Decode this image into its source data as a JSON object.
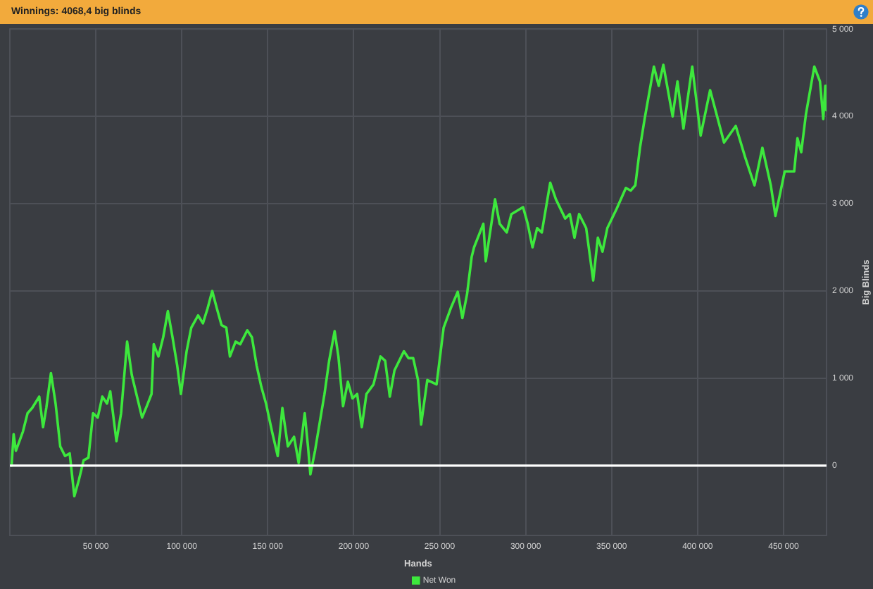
{
  "chart_data": {
    "type": "line",
    "title": "Winnings: 4068,4 big blinds",
    "xlabel": "Hands",
    "ylabel": "Big Blinds",
    "x": [
      1000,
      2200,
      3500,
      7600,
      10300,
      13000,
      17100,
      19300,
      21200,
      23900,
      26600,
      29300,
      32100,
      34800,
      37500,
      40200,
      42900,
      45700,
      48400,
      51100,
      53800,
      56500,
      58400,
      62000,
      64700,
      68200,
      70900,
      74200,
      76900,
      79600,
      82400,
      83700,
      86400,
      89200,
      91900,
      94600,
      97300,
      99500,
      102800,
      105500,
      109500,
      112300,
      115000,
      117700,
      120400,
      123100,
      125900,
      128000,
      131300,
      134000,
      138100,
      140800,
      143500,
      146300,
      149000,
      152500,
      155800,
      158500,
      161700,
      165300,
      168000,
      171500,
      173400,
      174800,
      177500,
      183000,
      185700,
      188900,
      191100,
      193800,
      196600,
      199300,
      202000,
      204700,
      207400,
      211500,
      215600,
      218300,
      221000,
      223700,
      229200,
      231900,
      234600,
      237400,
      239200,
      242800,
      248200,
      252300,
      256400,
      260500,
      263200,
      265900,
      268600,
      270000,
      275400,
      276800,
      282200,
      284900,
      289000,
      291700,
      298500,
      301200,
      304000,
      306700,
      309400,
      314300,
      317600,
      323000,
      325700,
      328400,
      331100,
      335200,
      339300,
      342000,
      344700,
      347500,
      352900,
      358300,
      361100,
      363800,
      366500,
      369200,
      374600,
      377400,
      380100,
      385500,
      388300,
      391800,
      396900,
      401800,
      407300,
      415400,
      422200,
      427700,
      433100,
      437700,
      442600,
      445300,
      450700,
      456200,
      458100,
      460300,
      463000,
      467900,
      471200,
      473100,
      474300,
      474900
    ],
    "series": [
      {
        "name": "Net Won",
        "color": "#3de83d",
        "values": [
          0,
          360,
          170,
          390,
          600,
          660,
          790,
          440,
          660,
          1060,
          710,
          220,
          110,
          140,
          -350,
          -160,
          60,
          90,
          600,
          550,
          790,
          710,
          850,
          280,
          600,
          1420,
          1040,
          770,
          550,
          680,
          820,
          1390,
          1250,
          1470,
          1770,
          1470,
          1150,
          820,
          1310,
          1580,
          1720,
          1630,
          1800,
          2000,
          1800,
          1610,
          1580,
          1250,
          1420,
          1390,
          1550,
          1470,
          1150,
          900,
          710,
          390,
          110,
          660,
          220,
          330,
          30,
          600,
          220,
          -100,
          170,
          820,
          1200,
          1540,
          1250,
          680,
          960,
          770,
          820,
          440,
          820,
          930,
          1250,
          1200,
          790,
          1090,
          1310,
          1230,
          1230,
          980,
          470,
          980,
          930,
          1580,
          1800,
          1990,
          1690,
          1960,
          2390,
          2500,
          2770,
          2340,
          3050,
          2770,
          2670,
          2880,
          2960,
          2770,
          2500,
          2720,
          2670,
          3240,
          3050,
          2830,
          2880,
          2610,
          2880,
          2720,
          2120,
          2610,
          2450,
          2720,
          2940,
          3180,
          3150,
          3210,
          3640,
          3970,
          4570,
          4350,
          4590,
          4000,
          4400,
          3860,
          4570,
          3780,
          4300,
          3700,
          3890,
          3530,
          3210,
          3640,
          3210,
          2860,
          3370,
          3370,
          3750,
          3590,
          4020,
          4570,
          4400,
          3970,
          4350,
          4070
        ]
      }
    ],
    "xlim": [
      0,
      475000
    ],
    "xticks": [
      {
        "value": 50000,
        "label": "50 000"
      },
      {
        "value": 100000,
        "label": "100 000"
      },
      {
        "value": 150000,
        "label": "150 000"
      },
      {
        "value": 200000,
        "label": "200 000"
      },
      {
        "value": 250000,
        "label": "250 000"
      },
      {
        "value": 300000,
        "label": "300 000"
      },
      {
        "value": 350000,
        "label": "350 000"
      },
      {
        "value": 400000,
        "label": "400 000"
      },
      {
        "value": 450000,
        "label": "450 000"
      }
    ],
    "ylim": [
      -800,
      5000
    ],
    "yticks": [
      0,
      {
        "value": 1000,
        "label": "1 000"
      },
      {
        "value": 2000,
        "label": "2 000"
      },
      {
        "value": 3000,
        "label": "3 000"
      },
      {
        "value": 4000,
        "label": "4 000"
      },
      {
        "value": 5000,
        "label": "5 000"
      }
    ],
    "ref_lines": [
      {
        "axis": "y",
        "value": 0,
        "color": "#ffffff"
      }
    ],
    "grid": true,
    "legend": "bottom",
    "marker": "none"
  }
}
